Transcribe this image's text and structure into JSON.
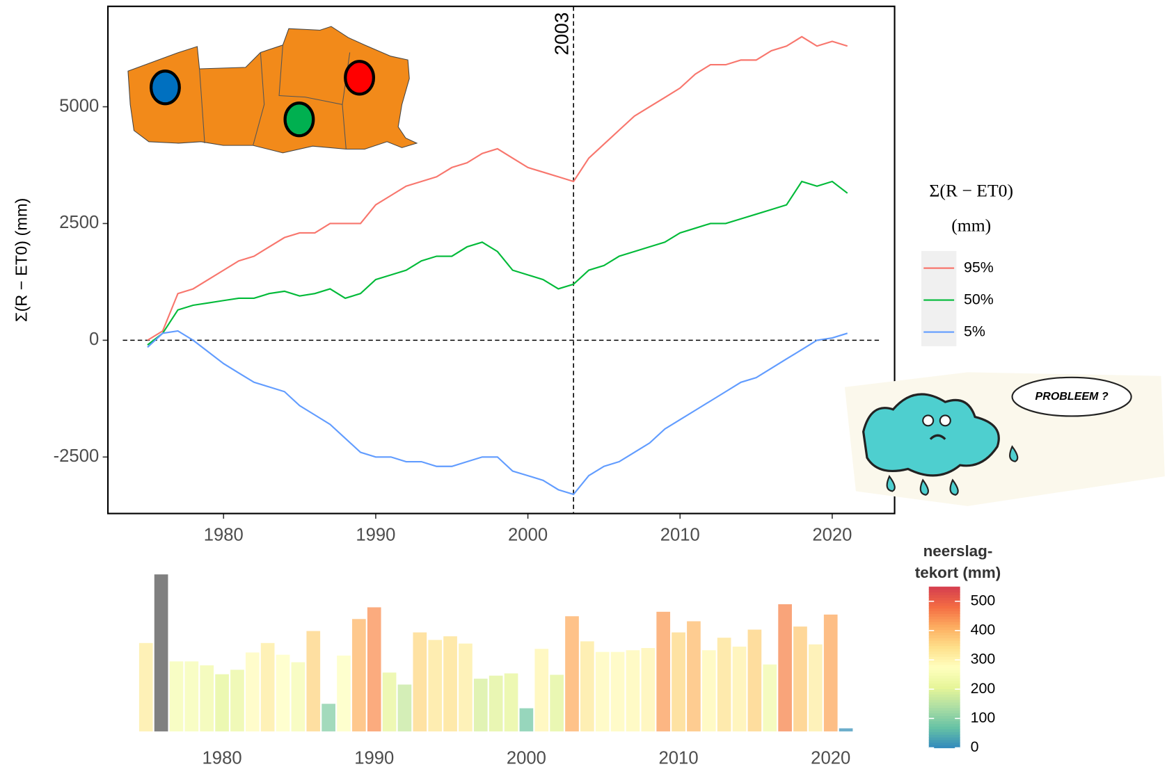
{
  "chart_data": [
    {
      "type": "line",
      "y_label": "Σ(R − ET0) (mm)",
      "legend_title": [
        "Σ(R − ET0)",
        "(mm)"
      ],
      "legend": "right",
      "xlim": [
        1972.4,
        2024.1
      ],
      "ylim": [
        -3710,
        7150
      ],
      "xticks": [
        1980,
        1990,
        2000,
        2010,
        2020
      ],
      "yticks": [
        -2500,
        0,
        2500,
        5000
      ],
      "hline": 0,
      "vline": 2003,
      "x": [
        1975,
        1976,
        1977,
        1978,
        1979,
        1980,
        1981,
        1982,
        1983,
        1984,
        1985,
        1986,
        1987,
        1988,
        1989,
        1990,
        1991,
        1992,
        1993,
        1994,
        1995,
        1996,
        1997,
        1998,
        1999,
        2000,
        2001,
        2002,
        2003,
        2004,
        2005,
        2006,
        2007,
        2008,
        2009,
        2010,
        2011,
        2012,
        2013,
        2014,
        2015,
        2016,
        2017,
        2018,
        2019,
        2020,
        2021
      ],
      "series": [
        {
          "name": "95%",
          "color": "#f8766d",
          "values": [
            0,
            200,
            1000,
            1100,
            1300,
            1500,
            1700,
            1800,
            2000,
            2200,
            2300,
            2300,
            2500,
            2500,
            2500,
            2900,
            3100,
            3300,
            3400,
            3500,
            3700,
            3800,
            4000,
            4100,
            3900,
            3700,
            3600,
            3500,
            3400,
            3900,
            4200,
            4500,
            4800,
            5000,
            5200,
            5400,
            5700,
            5900,
            5900,
            6000,
            6000,
            6200,
            6300,
            6500,
            6300,
            6400,
            6300
          ]
        },
        {
          "name": "50%",
          "color": "#00ba38",
          "values": [
            -100,
            150,
            650,
            750,
            800,
            850,
            900,
            900,
            1000,
            1050,
            950,
            1000,
            1100,
            900,
            1000,
            1300,
            1400,
            1500,
            1700,
            1800,
            1800,
            2000,
            2100,
            1900,
            1500,
            1400,
            1300,
            1100,
            1200,
            1500,
            1600,
            1800,
            1900,
            2000,
            2100,
            2300,
            2400,
            2500,
            2500,
            2600,
            2700,
            2800,
            2900,
            3400,
            3300,
            3400,
            3150
          ]
        },
        {
          "name": "5%",
          "color": "#619cff",
          "values": [
            -150,
            150,
            200,
            0,
            -250,
            -500,
            -700,
            -900,
            -1000,
            -1100,
            -1400,
            -1600,
            -1800,
            -2100,
            -2400,
            -2500,
            -2500,
            -2600,
            -2600,
            -2700,
            -2700,
            -2600,
            -2500,
            -2500,
            -2800,
            -2900,
            -3000,
            -3200,
            -3300,
            -2900,
            -2700,
            -2600,
            -2400,
            -2200,
            -1900,
            -1700,
            -1500,
            -1300,
            -1100,
            -900,
            -800,
            -600,
            -400,
            -200,
            0,
            50,
            150
          ]
        }
      ],
      "cartoon": {
        "speech": "PROBLEEM ?"
      }
    },
    {
      "type": "bar",
      "xlim": [
        1972.5,
        2024.2
      ],
      "ylim": [
        0,
        600
      ],
      "xticks": [
        1980,
        1990,
        2000,
        2010,
        2020
      ],
      "x": [
        1975,
        1976,
        1977,
        1978,
        1979,
        1980,
        1981,
        1982,
        1983,
        1984,
        1985,
        1986,
        1987,
        1988,
        1989,
        1990,
        1991,
        1992,
        1993,
        1994,
        1995,
        1996,
        1997,
        1998,
        1999,
        2000,
        2001,
        2002,
        2003,
        2004,
        2005,
        2006,
        2007,
        2008,
        2009,
        2010,
        2011,
        2012,
        2013,
        2014,
        2015,
        2016,
        2017,
        2018,
        2019,
        2020,
        2021
      ],
      "values": [
        317,
        563,
        251,
        251,
        237,
        205,
        221,
        283,
        317,
        275,
        248,
        360,
        99,
        272,
        403,
        445,
        211,
        168,
        355,
        328,
        341,
        315,
        189,
        200,
        208,
        83,
        296,
        203,
        413,
        323,
        285,
        285,
        291,
        299,
        429,
        355,
        395,
        291,
        336,
        304,
        365,
        240,
        456,
        376,
        312,
        419,
        11
      ],
      "colorbar": {
        "title": [
          "neerslag-",
          "tekort (mm)"
        ],
        "lim": [
          0,
          550
        ],
        "ticks": [
          0,
          100,
          200,
          300,
          400,
          500
        ],
        "colors": [
          "#3288bd",
          "#66c2a5",
          "#abdda4",
          "#e6f598",
          "#ffffbf",
          "#fee08b",
          "#fdae61",
          "#f46d43",
          "#d53e4f"
        ],
        "na_color": "#808080"
      }
    }
  ]
}
